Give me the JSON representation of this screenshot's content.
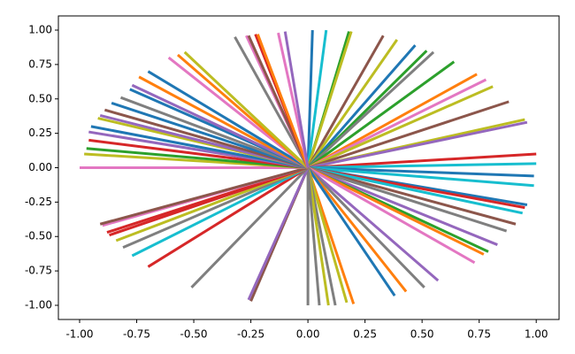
{
  "chart_data": {
    "type": "line",
    "xlim": [
      -1.093,
      1.1
    ],
    "ylim": [
      -1.103,
      1.103
    ],
    "xticks": [
      {
        "value": -1,
        "label": "-1.00"
      },
      {
        "value": -0.75,
        "label": "-0.75"
      },
      {
        "value": -0.5,
        "label": "-0.50"
      },
      {
        "value": -0.25,
        "label": "-0.25"
      },
      {
        "value": 0,
        "label": "0.00"
      },
      {
        "value": 0.25,
        "label": "0.25"
      },
      {
        "value": 0.5,
        "label": "0.50"
      },
      {
        "value": 0.75,
        "label": "0.75"
      },
      {
        "value": 1,
        "label": "1.00"
      }
    ],
    "yticks": [
      {
        "value": -1,
        "label": "-1.00"
      },
      {
        "value": -0.75,
        "label": "-0.75"
      },
      {
        "value": -0.5,
        "label": "-0.50"
      },
      {
        "value": -0.25,
        "label": "-0.25"
      },
      {
        "value": 0,
        "label": "0.00"
      },
      {
        "value": 0.25,
        "label": "0.25"
      },
      {
        "value": 0.5,
        "label": "0.50"
      },
      {
        "value": 0.75,
        "label": "0.75"
      },
      {
        "value": 1,
        "label": "1.00"
      }
    ],
    "series": [
      {
        "color": "#1f77b4",
        "x": [
          0,
          0.02
        ],
        "values": [
          0,
          1.0
        ]
      },
      {
        "color": "#17becf",
        "x": [
          0,
          0.08
        ],
        "values": [
          0,
          1.0
        ]
      },
      {
        "color": "#2ca02c",
        "x": [
          0,
          0.18
        ],
        "values": [
          0,
          0.99
        ]
      },
      {
        "color": "#bcbd22",
        "x": [
          0,
          0.19
        ],
        "values": [
          0,
          0.99
        ]
      },
      {
        "color": "#8c564b",
        "x": [
          0,
          0.33
        ],
        "values": [
          0,
          0.96
        ]
      },
      {
        "color": "#bcbd22",
        "x": [
          0,
          0.39
        ],
        "values": [
          0,
          0.93
        ]
      },
      {
        "color": "#1f77b4",
        "x": [
          0,
          0.47
        ],
        "values": [
          0,
          0.89
        ]
      },
      {
        "color": "#2ca02c",
        "x": [
          0,
          0.52
        ],
        "values": [
          0,
          0.85
        ]
      },
      {
        "color": "#7f7f7f",
        "x": [
          0,
          0.55
        ],
        "values": [
          0,
          0.84
        ]
      },
      {
        "color": "#2ca02c",
        "x": [
          0,
          0.64
        ],
        "values": [
          0,
          0.77
        ]
      },
      {
        "color": "#ff7f0e",
        "x": [
          0,
          0.74
        ],
        "values": [
          0,
          0.68
        ]
      },
      {
        "color": "#e377c2",
        "x": [
          0,
          0.78
        ],
        "values": [
          0,
          0.64
        ]
      },
      {
        "color": "#bcbd22",
        "x": [
          0,
          0.81
        ],
        "values": [
          0,
          0.59
        ]
      },
      {
        "color": "#8c564b",
        "x": [
          0,
          0.88
        ],
        "values": [
          0,
          0.48
        ]
      },
      {
        "color": "#bcbd22",
        "x": [
          0,
          0.95
        ],
        "values": [
          0,
          0.35
        ]
      },
      {
        "color": "#9467bd",
        "x": [
          0,
          0.96
        ],
        "values": [
          0,
          0.33
        ]
      },
      {
        "color": "#d62728",
        "x": [
          0,
          1.0
        ],
        "values": [
          0,
          0.1
        ]
      },
      {
        "color": "#17becf",
        "x": [
          0,
          1.0
        ],
        "values": [
          0,
          0.03
        ]
      },
      {
        "color": "#1f77b4",
        "x": [
          0,
          0.99
        ],
        "values": [
          0,
          -0.06
        ]
      },
      {
        "color": "#17becf",
        "x": [
          0,
          0.99
        ],
        "values": [
          0,
          -0.13
        ]
      },
      {
        "color": "#1f77b4",
        "x": [
          0,
          0.96
        ],
        "values": [
          0,
          -0.27
        ]
      },
      {
        "color": "#d62728",
        "x": [
          0,
          0.95
        ],
        "values": [
          0,
          -0.29
        ]
      },
      {
        "color": "#17becf",
        "x": [
          0,
          0.94
        ],
        "values": [
          0,
          -0.33
        ]
      },
      {
        "color": "#8c564b",
        "x": [
          0,
          0.91
        ],
        "values": [
          0,
          -0.41
        ]
      },
      {
        "color": "#7f7f7f",
        "x": [
          0,
          0.87
        ],
        "values": [
          0,
          -0.46
        ]
      },
      {
        "color": "#9467bd",
        "x": [
          0,
          0.83
        ],
        "values": [
          0,
          -0.56
        ]
      },
      {
        "color": "#2ca02c",
        "x": [
          0,
          0.79
        ],
        "values": [
          0,
          -0.61
        ]
      },
      {
        "color": "#ff7f0e",
        "x": [
          0,
          0.77
        ],
        "values": [
          0,
          -0.63
        ]
      },
      {
        "color": "#e377c2",
        "x": [
          0,
          0.73
        ],
        "values": [
          0,
          -0.69
        ]
      },
      {
        "color": "#9467bd",
        "x": [
          0,
          0.57
        ],
        "values": [
          0,
          -0.82
        ]
      },
      {
        "color": "#7f7f7f",
        "x": [
          0,
          0.51
        ],
        "values": [
          0,
          -0.87
        ]
      },
      {
        "color": "#ff7f0e",
        "x": [
          0,
          0.43
        ],
        "values": [
          0,
          -0.9
        ]
      },
      {
        "color": "#1f77b4",
        "x": [
          0,
          0.38
        ],
        "values": [
          0,
          -0.93
        ]
      },
      {
        "color": "#ff7f0e",
        "x": [
          0,
          0.2
        ],
        "values": [
          0,
          -0.99
        ]
      },
      {
        "color": "#bcbd22",
        "x": [
          0,
          0.17
        ],
        "values": [
          0,
          -0.98
        ]
      },
      {
        "color": "#7f7f7f",
        "x": [
          0,
          0.12
        ],
        "values": [
          0,
          -1.0
        ]
      },
      {
        "color": "#bcbd22",
        "x": [
          0,
          0.09
        ],
        "values": [
          0,
          -1.0
        ]
      },
      {
        "color": "#7f7f7f",
        "x": [
          0,
          0.05
        ],
        "values": [
          0,
          -1.0
        ]
      },
      {
        "color": "#7f7f7f",
        "x": [
          0,
          0.0
        ],
        "values": [
          0,
          -1.0
        ]
      },
      {
        "color": "#8c564b",
        "x": [
          0,
          -0.25
        ],
        "values": [
          0,
          -0.97
        ]
      },
      {
        "color": "#9467bd",
        "x": [
          0,
          -0.26
        ],
        "values": [
          0,
          -0.96
        ]
      },
      {
        "color": "#7f7f7f",
        "x": [
          0,
          -0.51
        ],
        "values": [
          0,
          -0.87
        ]
      },
      {
        "color": "#d62728",
        "x": [
          0,
          -0.7
        ],
        "values": [
          0,
          -0.72
        ]
      },
      {
        "color": "#17becf",
        "x": [
          0,
          -0.77
        ],
        "values": [
          0,
          -0.64
        ]
      },
      {
        "color": "#7f7f7f",
        "x": [
          0,
          -0.81
        ],
        "values": [
          0,
          -0.58
        ]
      },
      {
        "color": "#bcbd22",
        "x": [
          0,
          -0.84
        ],
        "values": [
          0,
          -0.53
        ]
      },
      {
        "color": "#d62728",
        "x": [
          0,
          -0.87
        ],
        "values": [
          0,
          -0.49
        ]
      },
      {
        "color": "#d62728",
        "x": [
          0,
          -0.88
        ],
        "values": [
          0,
          -0.47
        ]
      },
      {
        "color": "#e377c2",
        "x": [
          0,
          -0.9
        ],
        "values": [
          0,
          -0.42
        ]
      },
      {
        "color": "#8c564b",
        "x": [
          0,
          -0.91
        ],
        "values": [
          0,
          -0.41
        ]
      },
      {
        "color": "#e377c2",
        "x": [
          0,
          -1.0
        ],
        "values": [
          0,
          0.0
        ]
      },
      {
        "color": "#bcbd22",
        "x": [
          0,
          -0.98
        ],
        "values": [
          0,
          0.1
        ]
      },
      {
        "color": "#2ca02c",
        "x": [
          0,
          -0.97
        ],
        "values": [
          0,
          0.14
        ]
      },
      {
        "color": "#d62728",
        "x": [
          0,
          -0.96
        ],
        "values": [
          0,
          0.2
        ]
      },
      {
        "color": "#9467bd",
        "x": [
          0,
          -0.96
        ],
        "values": [
          0,
          0.26
        ]
      },
      {
        "color": "#1f77b4",
        "x": [
          0,
          -0.95
        ],
        "values": [
          0,
          0.3
        ]
      },
      {
        "color": "#bcbd22",
        "x": [
          0,
          -0.92
        ],
        "values": [
          0,
          0.36
        ]
      },
      {
        "color": "#9467bd",
        "x": [
          0,
          -0.91
        ],
        "values": [
          0,
          0.38
        ]
      },
      {
        "color": "#8c564b",
        "x": [
          0,
          -0.89
        ],
        "values": [
          0,
          0.42
        ]
      },
      {
        "color": "#1f77b4",
        "x": [
          0,
          -0.86
        ],
        "values": [
          0,
          0.47
        ]
      },
      {
        "color": "#7f7f7f",
        "x": [
          0,
          -0.82
        ],
        "values": [
          0,
          0.51
        ]
      },
      {
        "color": "#1f77b4",
        "x": [
          0,
          -0.78
        ],
        "values": [
          0,
          0.57
        ]
      },
      {
        "color": "#9467bd",
        "x": [
          0,
          -0.77
        ],
        "values": [
          0,
          0.6
        ]
      },
      {
        "color": "#ff7f0e",
        "x": [
          0,
          -0.74
        ],
        "values": [
          0,
          0.66
        ]
      },
      {
        "color": "#1f77b4",
        "x": [
          0,
          -0.7
        ],
        "values": [
          0,
          0.7
        ]
      },
      {
        "color": "#e377c2",
        "x": [
          0,
          -0.61
        ],
        "values": [
          0,
          0.8
        ]
      },
      {
        "color": "#ff7f0e",
        "x": [
          0,
          -0.57
        ],
        "values": [
          0,
          0.82
        ]
      },
      {
        "color": "#bcbd22",
        "x": [
          0,
          -0.54
        ],
        "values": [
          0,
          0.84
        ]
      },
      {
        "color": "#7f7f7f",
        "x": [
          0,
          -0.32
        ],
        "values": [
          0,
          0.95
        ]
      },
      {
        "color": "#e377c2",
        "x": [
          0,
          -0.27
        ],
        "values": [
          0,
          0.96
        ]
      },
      {
        "color": "#8c564b",
        "x": [
          0,
          -0.26
        ],
        "values": [
          0,
          0.96
        ]
      },
      {
        "color": "#d62728",
        "x": [
          0,
          -0.23
        ],
        "values": [
          0,
          0.97
        ]
      },
      {
        "color": "#ff7f0e",
        "x": [
          0,
          -0.22
        ],
        "values": [
          0,
          0.97
        ]
      },
      {
        "color": "#e377c2",
        "x": [
          0,
          -0.13
        ],
        "values": [
          0,
          0.98
        ]
      },
      {
        "color": "#9467bd",
        "x": [
          0,
          -0.1
        ],
        "values": [
          0,
          0.99
        ]
      }
    ]
  }
}
